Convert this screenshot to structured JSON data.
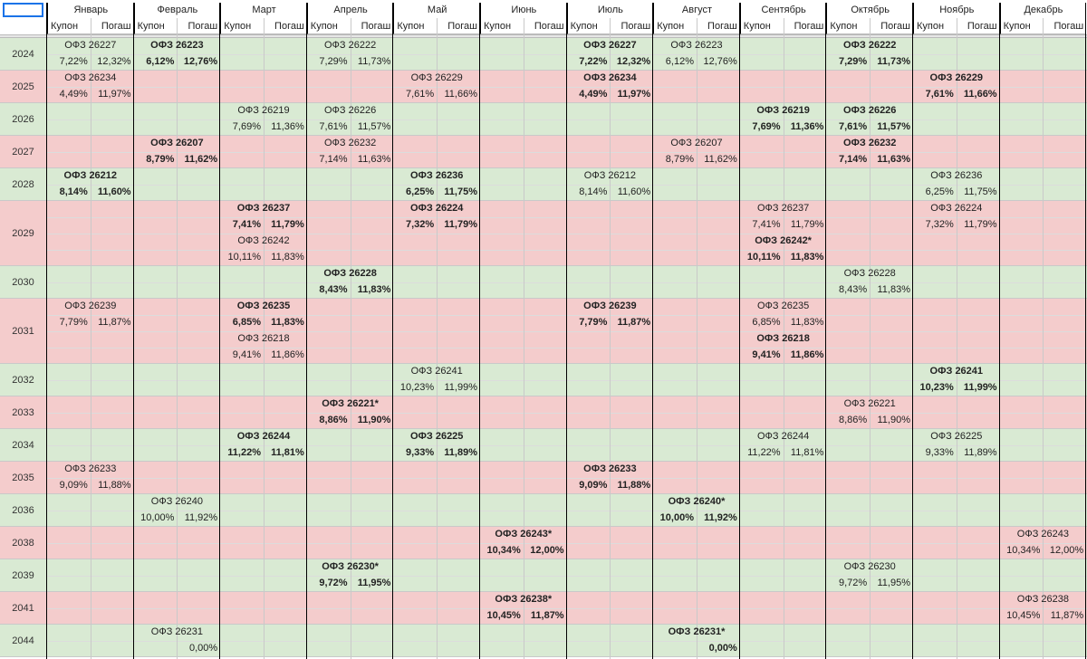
{
  "months": [
    "Январь",
    "Февраль",
    "Март",
    "Апрель",
    "Май",
    "Июнь",
    "Июль",
    "Август",
    "Сентябрь",
    "Октябрь",
    "Ноябрь",
    "Декабрь"
  ],
  "sub_labels": {
    "coupon": "Купон",
    "redemption": "Погаш"
  },
  "years": [
    {
      "year": "2024",
      "color": "green",
      "lines": 1
    },
    {
      "year": "2025",
      "color": "red",
      "lines": 1
    },
    {
      "year": "2026",
      "color": "green",
      "lines": 1
    },
    {
      "year": "2027",
      "color": "red",
      "lines": 1
    },
    {
      "year": "2028",
      "color": "green",
      "lines": 1
    },
    {
      "year": "2029",
      "color": "red",
      "lines": 2
    },
    {
      "year": "2030",
      "color": "green",
      "lines": 1
    },
    {
      "year": "2031",
      "color": "red",
      "lines": 2
    },
    {
      "year": "2032",
      "color": "green",
      "lines": 1
    },
    {
      "year": "2033",
      "color": "red",
      "lines": 1
    },
    {
      "year": "2034",
      "color": "green",
      "lines": 1
    },
    {
      "year": "2035",
      "color": "red",
      "lines": 1
    },
    {
      "year": "2036",
      "color": "green",
      "lines": 1
    },
    {
      "year": "2038",
      "color": "red",
      "lines": 1
    },
    {
      "year": "2039",
      "color": "green",
      "lines": 1
    },
    {
      "year": "2041",
      "color": "red",
      "lines": 1
    },
    {
      "year": "2044",
      "color": "green",
      "lines": 1
    }
  ],
  "entries": [
    {
      "y": 0,
      "line": 0,
      "m": 0,
      "name": "ОФЗ 26227",
      "c": "7,22%",
      "r": "12,32%",
      "bold": false
    },
    {
      "y": 0,
      "line": 0,
      "m": 1,
      "name": "ОФЗ 26223",
      "c": "6,12%",
      "r": "12,76%",
      "bold": true
    },
    {
      "y": 0,
      "line": 0,
      "m": 3,
      "name": "ОФЗ 26222",
      "c": "7,29%",
      "r": "11,73%",
      "bold": false
    },
    {
      "y": 0,
      "line": 0,
      "m": 6,
      "name": "ОФЗ 26227",
      "c": "7,22%",
      "r": "12,32%",
      "bold": true
    },
    {
      "y": 0,
      "line": 0,
      "m": 7,
      "name": "ОФЗ 26223",
      "c": "6,12%",
      "r": "12,76%",
      "bold": false
    },
    {
      "y": 0,
      "line": 0,
      "m": 9,
      "name": "ОФЗ 26222",
      "c": "7,29%",
      "r": "11,73%",
      "bold": true
    },
    {
      "y": 1,
      "line": 0,
      "m": 0,
      "name": "ОФЗ 26234",
      "c": "4,49%",
      "r": "11,97%",
      "bold": false
    },
    {
      "y": 1,
      "line": 0,
      "m": 4,
      "name": "ОФЗ 26229",
      "c": "7,61%",
      "r": "11,66%",
      "bold": false
    },
    {
      "y": 1,
      "line": 0,
      "m": 6,
      "name": "ОФЗ 26234",
      "c": "4,49%",
      "r": "11,97%",
      "bold": true
    },
    {
      "y": 1,
      "line": 0,
      "m": 10,
      "name": "ОФЗ 26229",
      "c": "7,61%",
      "r": "11,66%",
      "bold": true
    },
    {
      "y": 2,
      "line": 0,
      "m": 2,
      "name": "ОФЗ 26219",
      "c": "7,69%",
      "r": "11,36%",
      "bold": false
    },
    {
      "y": 2,
      "line": 0,
      "m": 3,
      "name": "ОФЗ 26226",
      "c": "7,61%",
      "r": "11,57%",
      "bold": false
    },
    {
      "y": 2,
      "line": 0,
      "m": 8,
      "name": "ОФЗ 26219",
      "c": "7,69%",
      "r": "11,36%",
      "bold": true
    },
    {
      "y": 2,
      "line": 0,
      "m": 9,
      "name": "ОФЗ 26226",
      "c": "7,61%",
      "r": "11,57%",
      "bold": true
    },
    {
      "y": 3,
      "line": 0,
      "m": 1,
      "name": "ОФЗ 26207",
      "c": "8,79%",
      "r": "11,62%",
      "bold": true
    },
    {
      "y": 3,
      "line": 0,
      "m": 3,
      "name": "ОФЗ 26232",
      "c": "7,14%",
      "r": "11,63%",
      "bold": false
    },
    {
      "y": 3,
      "line": 0,
      "m": 7,
      "name": "ОФЗ 26207",
      "c": "8,79%",
      "r": "11,62%",
      "bold": false
    },
    {
      "y": 3,
      "line": 0,
      "m": 9,
      "name": "ОФЗ 26232",
      "c": "7,14%",
      "r": "11,63%",
      "bold": true
    },
    {
      "y": 4,
      "line": 0,
      "m": 0,
      "name": "ОФЗ 26212",
      "c": "8,14%",
      "r": "11,60%",
      "bold": true
    },
    {
      "y": 4,
      "line": 0,
      "m": 4,
      "name": "ОФЗ 26236",
      "c": "6,25%",
      "r": "11,75%",
      "bold": true
    },
    {
      "y": 4,
      "line": 0,
      "m": 6,
      "name": "ОФЗ 26212",
      "c": "8,14%",
      "r": "11,60%",
      "bold": false
    },
    {
      "y": 4,
      "line": 0,
      "m": 10,
      "name": "ОФЗ 26236",
      "c": "6,25%",
      "r": "11,75%",
      "bold": false
    },
    {
      "y": 5,
      "line": 0,
      "m": 2,
      "name": "ОФЗ 26237",
      "c": "7,41%",
      "r": "11,79%",
      "bold": true
    },
    {
      "y": 5,
      "line": 0,
      "m": 4,
      "name": "ОФЗ 26224",
      "c": "7,32%",
      "r": "11,79%",
      "bold": true
    },
    {
      "y": 5,
      "line": 0,
      "m": 8,
      "name": "ОФЗ 26237",
      "c": "7,41%",
      "r": "11,79%",
      "bold": false
    },
    {
      "y": 5,
      "line": 0,
      "m": 10,
      "name": "ОФЗ 26224",
      "c": "7,32%",
      "r": "11,79%",
      "bold": false
    },
    {
      "y": 5,
      "line": 1,
      "m": 2,
      "name": "ОФЗ 26242",
      "c": "10,11%",
      "r": "11,83%",
      "bold": false
    },
    {
      "y": 5,
      "line": 1,
      "m": 8,
      "name": "ОФЗ 26242*",
      "c": "10,11%",
      "r": "11,83%",
      "bold": true
    },
    {
      "y": 6,
      "line": 0,
      "m": 3,
      "name": "ОФЗ 26228",
      "c": "8,43%",
      "r": "11,83%",
      "bold": true
    },
    {
      "y": 6,
      "line": 0,
      "m": 9,
      "name": "ОФЗ 26228",
      "c": "8,43%",
      "r": "11,83%",
      "bold": false
    },
    {
      "y": 7,
      "line": 0,
      "m": 0,
      "name": "ОФЗ 26239",
      "c": "7,79%",
      "r": "11,87%",
      "bold": false
    },
    {
      "y": 7,
      "line": 0,
      "m": 2,
      "name": "ОФЗ 26235",
      "c": "6,85%",
      "r": "11,83%",
      "bold": true
    },
    {
      "y": 7,
      "line": 0,
      "m": 6,
      "name": "ОФЗ 26239",
      "c": "7,79%",
      "r": "11,87%",
      "bold": true
    },
    {
      "y": 7,
      "line": 0,
      "m": 8,
      "name": "ОФЗ 26235",
      "c": "6,85%",
      "r": "11,83%",
      "bold": false
    },
    {
      "y": 7,
      "line": 1,
      "m": 2,
      "name": "ОФЗ 26218",
      "c": "9,41%",
      "r": "11,86%",
      "bold": false
    },
    {
      "y": 7,
      "line": 1,
      "m": 8,
      "name": "ОФЗ 26218",
      "c": "9,41%",
      "r": "11,86%",
      "bold": true
    },
    {
      "y": 8,
      "line": 0,
      "m": 4,
      "name": "ОФЗ 26241",
      "c": "10,23%",
      "r": "11,99%",
      "bold": false
    },
    {
      "y": 8,
      "line": 0,
      "m": 10,
      "name": "ОФЗ 26241",
      "c": "10,23%",
      "r": "11,99%",
      "bold": true
    },
    {
      "y": 9,
      "line": 0,
      "m": 3,
      "name": "ОФЗ 26221*",
      "c": "8,86%",
      "r": "11,90%",
      "bold": true
    },
    {
      "y": 9,
      "line": 0,
      "m": 9,
      "name": "ОФЗ 26221",
      "c": "8,86%",
      "r": "11,90%",
      "bold": false
    },
    {
      "y": 10,
      "line": 0,
      "m": 2,
      "name": "ОФЗ 26244",
      "c": "11,22%",
      "r": "11,81%",
      "bold": true
    },
    {
      "y": 10,
      "line": 0,
      "m": 4,
      "name": "ОФЗ 26225",
      "c": "9,33%",
      "r": "11,89%",
      "bold": true
    },
    {
      "y": 10,
      "line": 0,
      "m": 8,
      "name": "ОФЗ 26244",
      "c": "11,22%",
      "r": "11,81%",
      "bold": false
    },
    {
      "y": 10,
      "line": 0,
      "m": 10,
      "name": "ОФЗ 26225",
      "c": "9,33%",
      "r": "11,89%",
      "bold": false
    },
    {
      "y": 11,
      "line": 0,
      "m": 0,
      "name": "ОФЗ 26233",
      "c": "9,09%",
      "r": "11,88%",
      "bold": false
    },
    {
      "y": 11,
      "line": 0,
      "m": 6,
      "name": "ОФЗ 26233",
      "c": "9,09%",
      "r": "11,88%",
      "bold": true
    },
    {
      "y": 12,
      "line": 0,
      "m": 1,
      "name": "ОФЗ 26240",
      "c": "10,00%",
      "r": "11,92%",
      "bold": false
    },
    {
      "y": 12,
      "line": 0,
      "m": 7,
      "name": "ОФЗ 26240*",
      "c": "10,00%",
      "r": "11,92%",
      "bold": true
    },
    {
      "y": 13,
      "line": 0,
      "m": 5,
      "name": "ОФЗ 26243*",
      "c": "10,34%",
      "r": "12,00%",
      "bold": true
    },
    {
      "y": 13,
      "line": 0,
      "m": 11,
      "name": "ОФЗ 26243",
      "c": "10,34%",
      "r": "12,00%",
      "bold": false
    },
    {
      "y": 14,
      "line": 0,
      "m": 3,
      "name": "ОФЗ 26230*",
      "c": "9,72%",
      "r": "11,95%",
      "bold": true
    },
    {
      "y": 14,
      "line": 0,
      "m": 9,
      "name": "ОФЗ 26230",
      "c": "9,72%",
      "r": "11,95%",
      "bold": false
    },
    {
      "y": 15,
      "line": 0,
      "m": 5,
      "name": "ОФЗ 26238*",
      "c": "10,45%",
      "r": "11,87%",
      "bold": true
    },
    {
      "y": 15,
      "line": 0,
      "m": 11,
      "name": "ОФЗ 26238",
      "c": "10,45%",
      "r": "11,87%",
      "bold": false
    },
    {
      "y": 16,
      "line": 0,
      "m": 1,
      "name": "ОФЗ 26231",
      "c": "",
      "r": "0,00%",
      "bold": false
    },
    {
      "y": 16,
      "line": 0,
      "m": 7,
      "name": "ОФЗ 26231*",
      "c": "",
      "r": "0,00%",
      "bold": true
    }
  ],
  "colors": {
    "green": "#d9ead3",
    "red": "#f4cccc",
    "selection": "#1a73e8"
  }
}
